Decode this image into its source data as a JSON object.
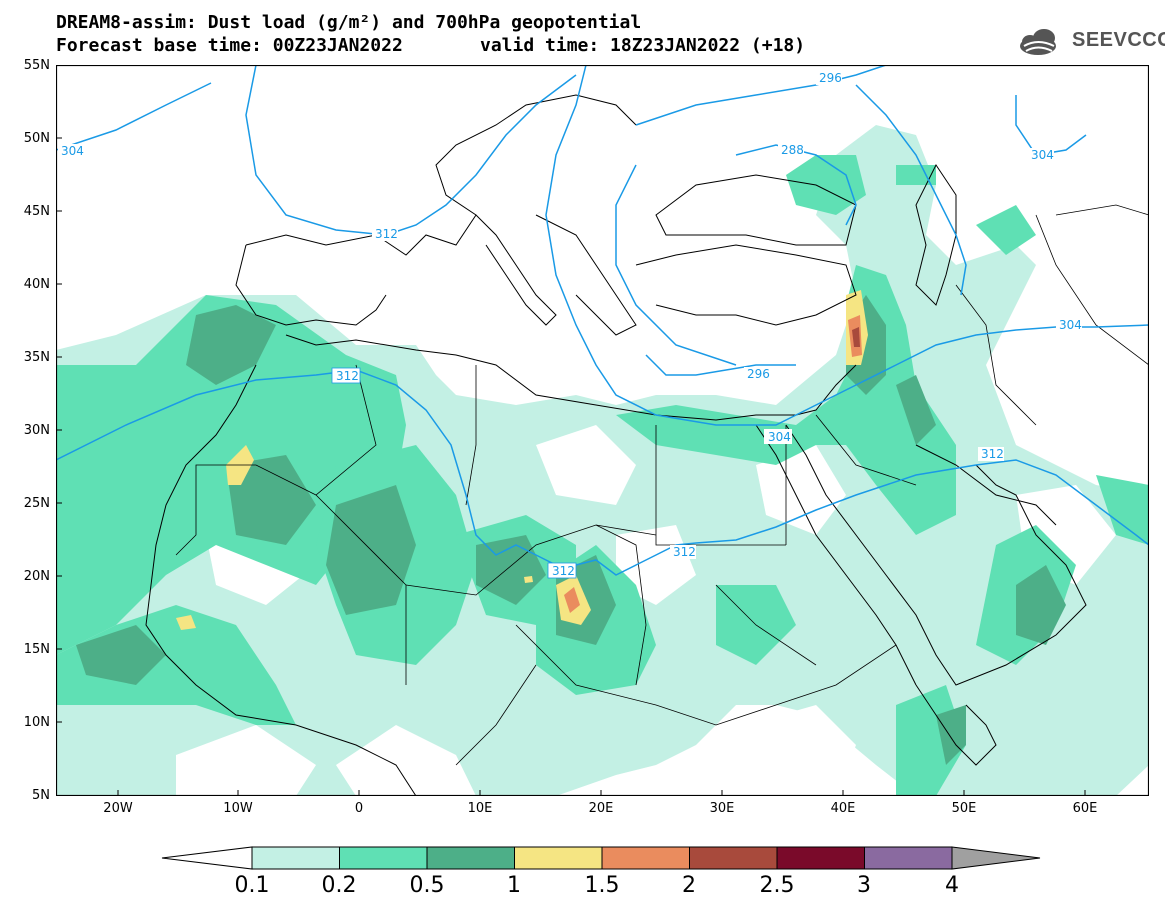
{
  "header": {
    "title_line1": "DREAM8-assim: Dust load (g/m²) and 700hPa geopotential",
    "title_line2": "Forecast base time: 00Z23JAN2022",
    "valid_time": "valid time: 18Z23JAN2022 (+18)",
    "logo_text": "SEEVCCC",
    "logo_icon": "cloud-logo-icon"
  },
  "map": {
    "lat_ticks": [
      "55N",
      "50N",
      "45N",
      "40N",
      "35N",
      "30N",
      "25N",
      "20N",
      "15N",
      "10N",
      "5N"
    ],
    "lon_ticks": [
      "20W",
      "10W",
      "0",
      "10E",
      "20E",
      "30E",
      "40E",
      "50E",
      "60E"
    ],
    "contour_labels": [
      "296",
      "304",
      "288",
      "312",
      "312",
      "296",
      "304",
      "304",
      "312",
      "312",
      "312",
      "304"
    ],
    "colors": {
      "contour": "#1a9ae6",
      "coast": "#000000"
    }
  },
  "colorbar": {
    "labels": [
      "0.1",
      "0.2",
      "0.5",
      "1",
      "1.5",
      "2",
      "2.5",
      "3",
      "4"
    ],
    "colors": [
      "#c3f0e4",
      "#5fe0b4",
      "#4daf88",
      "#f5e583",
      "#ea8c5e",
      "#a84a3c",
      "#7a0a2a",
      "#8a6aa0",
      "#a0a0a0"
    ]
  }
}
